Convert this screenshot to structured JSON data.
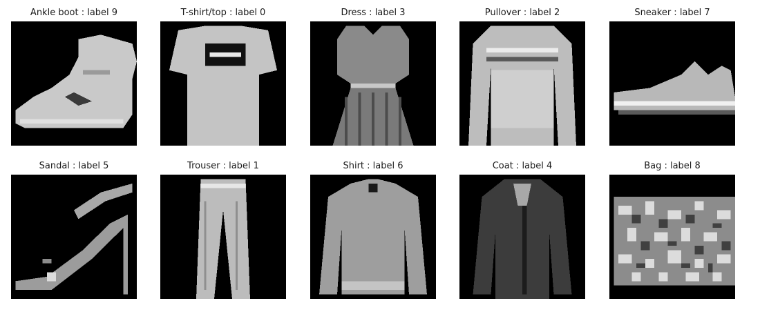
{
  "figure": {
    "panels": [
      {
        "title": "Ankle boot : label 9",
        "item": "ankle-boot"
      },
      {
        "title": "T-shirt/top : label 0",
        "item": "tshirt-top"
      },
      {
        "title": "Dress : label 3",
        "item": "dress"
      },
      {
        "title": "Pullover : label 2",
        "item": "pullover"
      },
      {
        "title": "Sneaker : label 7",
        "item": "sneaker"
      },
      {
        "title": "Sandal : label 5",
        "item": "sandal"
      },
      {
        "title": "Trouser : label 1",
        "item": "trouser"
      },
      {
        "title": "Shirt : label 6",
        "item": "shirt"
      },
      {
        "title": "Coat : label 4",
        "item": "coat"
      },
      {
        "title": "Bag : label 8",
        "item": "bag"
      }
    ]
  }
}
